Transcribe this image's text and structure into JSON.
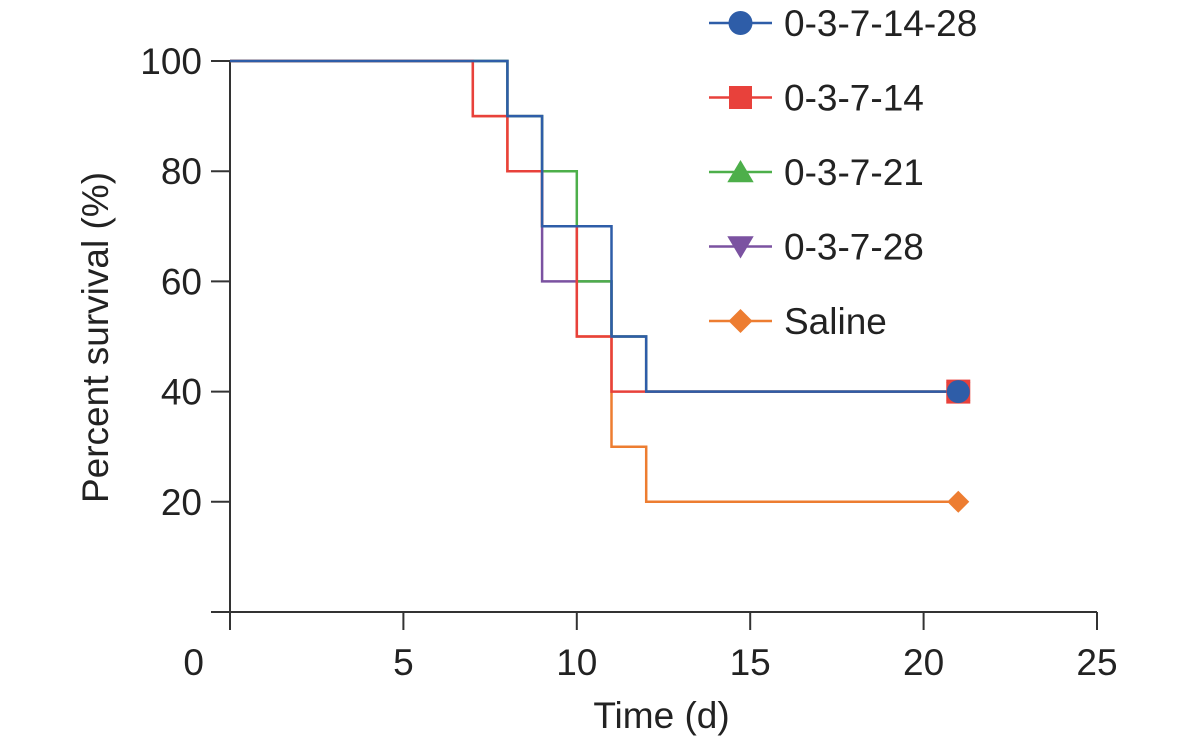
{
  "chart_data": {
    "type": "line",
    "step": true,
    "title": "",
    "xlabel": "Time (d)",
    "ylabel": "Percent survival (%)",
    "xlim": [
      0,
      25
    ],
    "ylim": [
      0,
      100
    ],
    "x_ticks": [
      0,
      5,
      10,
      15,
      20,
      25
    ],
    "y_ticks": [
      20,
      40,
      60,
      80,
      100
    ],
    "grid": false,
    "legend": "top-right",
    "series": [
      {
        "name": "Saline",
        "color": "#ED7D31",
        "marker": "diamond",
        "points": [
          [
            0,
            100
          ],
          [
            7,
            100
          ],
          [
            7,
            90
          ],
          [
            8,
            90
          ],
          [
            8,
            80
          ],
          [
            9,
            80
          ],
          [
            9,
            70
          ],
          [
            10,
            70
          ],
          [
            10,
            50
          ],
          [
            11,
            50
          ],
          [
            11,
            30
          ],
          [
            12,
            30
          ],
          [
            12,
            20
          ],
          [
            21,
            20
          ]
        ],
        "end_marker": [
          21,
          20
        ]
      },
      {
        "name": "0-3-7-28",
        "color": "#7B52A1",
        "marker": "triangle-down",
        "points": [
          [
            0,
            100
          ],
          [
            8,
            100
          ],
          [
            8,
            90
          ],
          [
            9,
            90
          ],
          [
            9,
            60
          ],
          [
            11,
            60
          ],
          [
            11,
            50
          ],
          [
            12,
            50
          ],
          [
            12,
            40
          ],
          [
            21,
            40
          ]
        ],
        "end_marker": [
          21,
          40
        ]
      },
      {
        "name": "0-3-7-21",
        "color": "#4DAF4A",
        "marker": "triangle-up",
        "points": [
          [
            0,
            100
          ],
          [
            8,
            100
          ],
          [
            8,
            90
          ],
          [
            9,
            90
          ],
          [
            9,
            80
          ],
          [
            10,
            80
          ],
          [
            10,
            60
          ],
          [
            11,
            60
          ],
          [
            11,
            50
          ],
          [
            12,
            50
          ],
          [
            12,
            40
          ],
          [
            21,
            40
          ]
        ],
        "end_marker": [
          21,
          40
        ]
      },
      {
        "name": "0-3-7-14",
        "color": "#E8413B",
        "marker": "square",
        "points": [
          [
            0,
            100
          ],
          [
            7,
            100
          ],
          [
            7,
            90
          ],
          [
            8,
            90
          ],
          [
            8,
            80
          ],
          [
            9,
            80
          ],
          [
            9,
            70
          ],
          [
            10,
            70
          ],
          [
            10,
            50
          ],
          [
            11,
            50
          ],
          [
            11,
            40
          ],
          [
            21,
            40
          ]
        ],
        "end_marker": [
          21,
          40
        ]
      },
      {
        "name": "0-3-7-14-28",
        "color": "#2E5DA8",
        "marker": "circle",
        "points": [
          [
            0,
            100
          ],
          [
            8,
            100
          ],
          [
            8,
            90
          ],
          [
            9,
            90
          ],
          [
            9,
            70
          ],
          [
            11,
            70
          ],
          [
            11,
            50
          ],
          [
            12,
            50
          ],
          [
            12,
            40
          ],
          [
            21,
            40
          ]
        ],
        "end_marker": [
          21,
          40
        ]
      }
    ],
    "legend_order": [
      "0-3-7-14-28",
      "0-3-7-14",
      "0-3-7-21",
      "0-3-7-28",
      "Saline"
    ]
  }
}
